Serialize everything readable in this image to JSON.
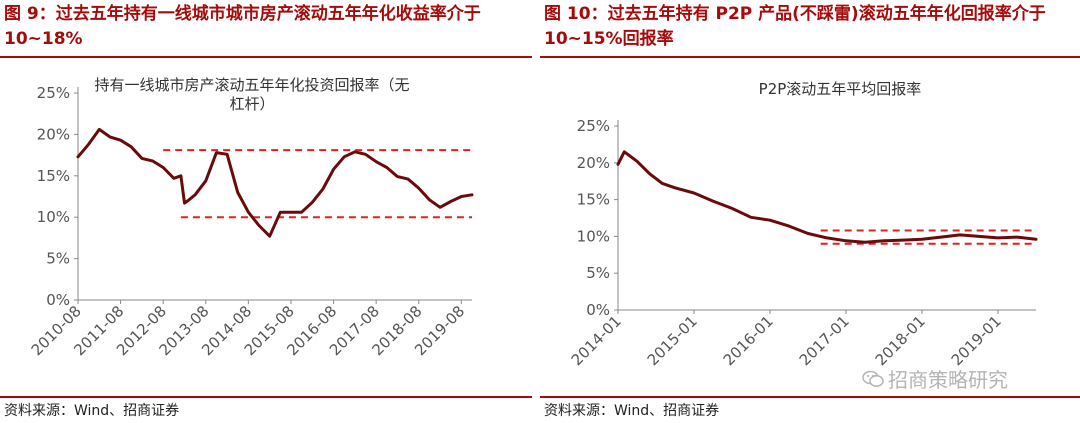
{
  "left": {
    "figure_title": "图 9：过去五年持有一线城市城市房产滚动五年年化收益率介于 10~18%",
    "source": "资料来源：Wind、招商证券"
  },
  "right": {
    "figure_title": "图 10：过去五年持有 P2P 产品(不踩雷)滚动五年年化回报率介于 10~15%回报率",
    "source": "资料来源：Wind、招商证券"
  },
  "watermark": {
    "text": "招商策略研究",
    "icon": "wechat-icon"
  },
  "colors": {
    "accent": "#a50b0b",
    "line": "#6b0a0a",
    "ref": "#e02020"
  },
  "chart_data": [
    {
      "type": "line",
      "title": "持有一线城市房产滚动五年年化投资回报率（无杠杆）",
      "title_lines": [
        "持有一线城市房产滚动五年年化投资回报率（无",
        "杠杆）"
      ],
      "xlabel": "",
      "ylabel": "",
      "x_date_range": [
        "2010-08",
        "2019-11"
      ],
      "x_tick_labels": [
        "2010-08",
        "2011-08",
        "2012-08",
        "2013-08",
        "2014-08",
        "2015-08",
        "2016-08",
        "2017-08",
        "2018-08",
        "2019-08"
      ],
      "y_tick_labels": [
        "0%",
        "5%",
        "10%",
        "15%",
        "20%",
        "25%"
      ],
      "ylim": [
        0,
        25
      ],
      "grid": false,
      "legend": "none",
      "series": [
        {
          "x": [
            "2010-08",
            "2010-11",
            "2011-02",
            "2011-05",
            "2011-08",
            "2011-11",
            "2012-02",
            "2012-05",
            "2012-08",
            "2012-11",
            "2013-01",
            "2013-02",
            "2013-03",
            "2013-05",
            "2013-08",
            "2013-11",
            "2014-02",
            "2014-05",
            "2014-08",
            "2014-11",
            "2015-02",
            "2015-05",
            "2015-08",
            "2015-11",
            "2016-02",
            "2016-05",
            "2016-08",
            "2016-11",
            "2017-02",
            "2017-05",
            "2017-08",
            "2017-11",
            "2018-02",
            "2018-05",
            "2018-08",
            "2018-11",
            "2019-02",
            "2019-05",
            "2019-08",
            "2019-11"
          ],
          "values": [
            17.3,
            18.8,
            20.6,
            19.7,
            19.3,
            18.5,
            17.1,
            16.8,
            16.0,
            14.7,
            15.0,
            11.7,
            12.0,
            12.7,
            14.4,
            17.8,
            17.6,
            13.0,
            10.6,
            9.0,
            7.7,
            10.6,
            10.6,
            10.6,
            11.8,
            13.4,
            15.8,
            17.3,
            17.9,
            17.6,
            16.7,
            16.0,
            14.9,
            14.6,
            13.5,
            12.1,
            11.2,
            11.9,
            12.5,
            12.7
          ]
        }
      ],
      "reference_lines": [
        {
          "value": 18.1,
          "x_start": "2012-08"
        },
        {
          "value": 10.0,
          "x_start": "2013-01"
        }
      ]
    },
    {
      "type": "line",
      "title": "P2P滚动五年平均回报率",
      "title_lines": [
        "P2P滚动五年平均回报率"
      ],
      "xlabel": "",
      "ylabel": "",
      "x_date_range": [
        "2014-01",
        "2019-07"
      ],
      "x_tick_labels": [
        "2014-01",
        "2015-01",
        "2016-01",
        "2017-01",
        "2018-01",
        "2019-01"
      ],
      "y_tick_labels": [
        "0%",
        "5%",
        "10%",
        "15%",
        "20%",
        "25%"
      ],
      "ylim": [
        0,
        25
      ],
      "grid": false,
      "legend": "none",
      "series": [
        {
          "x": [
            "2014-01",
            "2014-02",
            "2014-04",
            "2014-06",
            "2014-08",
            "2014-10",
            "2015-01",
            "2015-04",
            "2015-07",
            "2015-10",
            "2016-01",
            "2016-04",
            "2016-07",
            "2016-10",
            "2017-01",
            "2017-04",
            "2017-07",
            "2017-10",
            "2018-01",
            "2018-04",
            "2018-07",
            "2018-10",
            "2019-01",
            "2019-04",
            "2019-07"
          ],
          "values": [
            19.8,
            21.5,
            20.2,
            18.5,
            17.2,
            16.6,
            15.9,
            14.8,
            13.8,
            12.6,
            12.2,
            11.4,
            10.4,
            9.8,
            9.4,
            9.2,
            9.4,
            9.5,
            9.6,
            9.9,
            10.2,
            10.0,
            9.8,
            9.9,
            9.6
          ]
        }
      ],
      "reference_lines": [
        {
          "value": 10.8,
          "x_start": "2016-09"
        },
        {
          "value": 9.0,
          "x_start": "2016-09"
        }
      ]
    }
  ]
}
